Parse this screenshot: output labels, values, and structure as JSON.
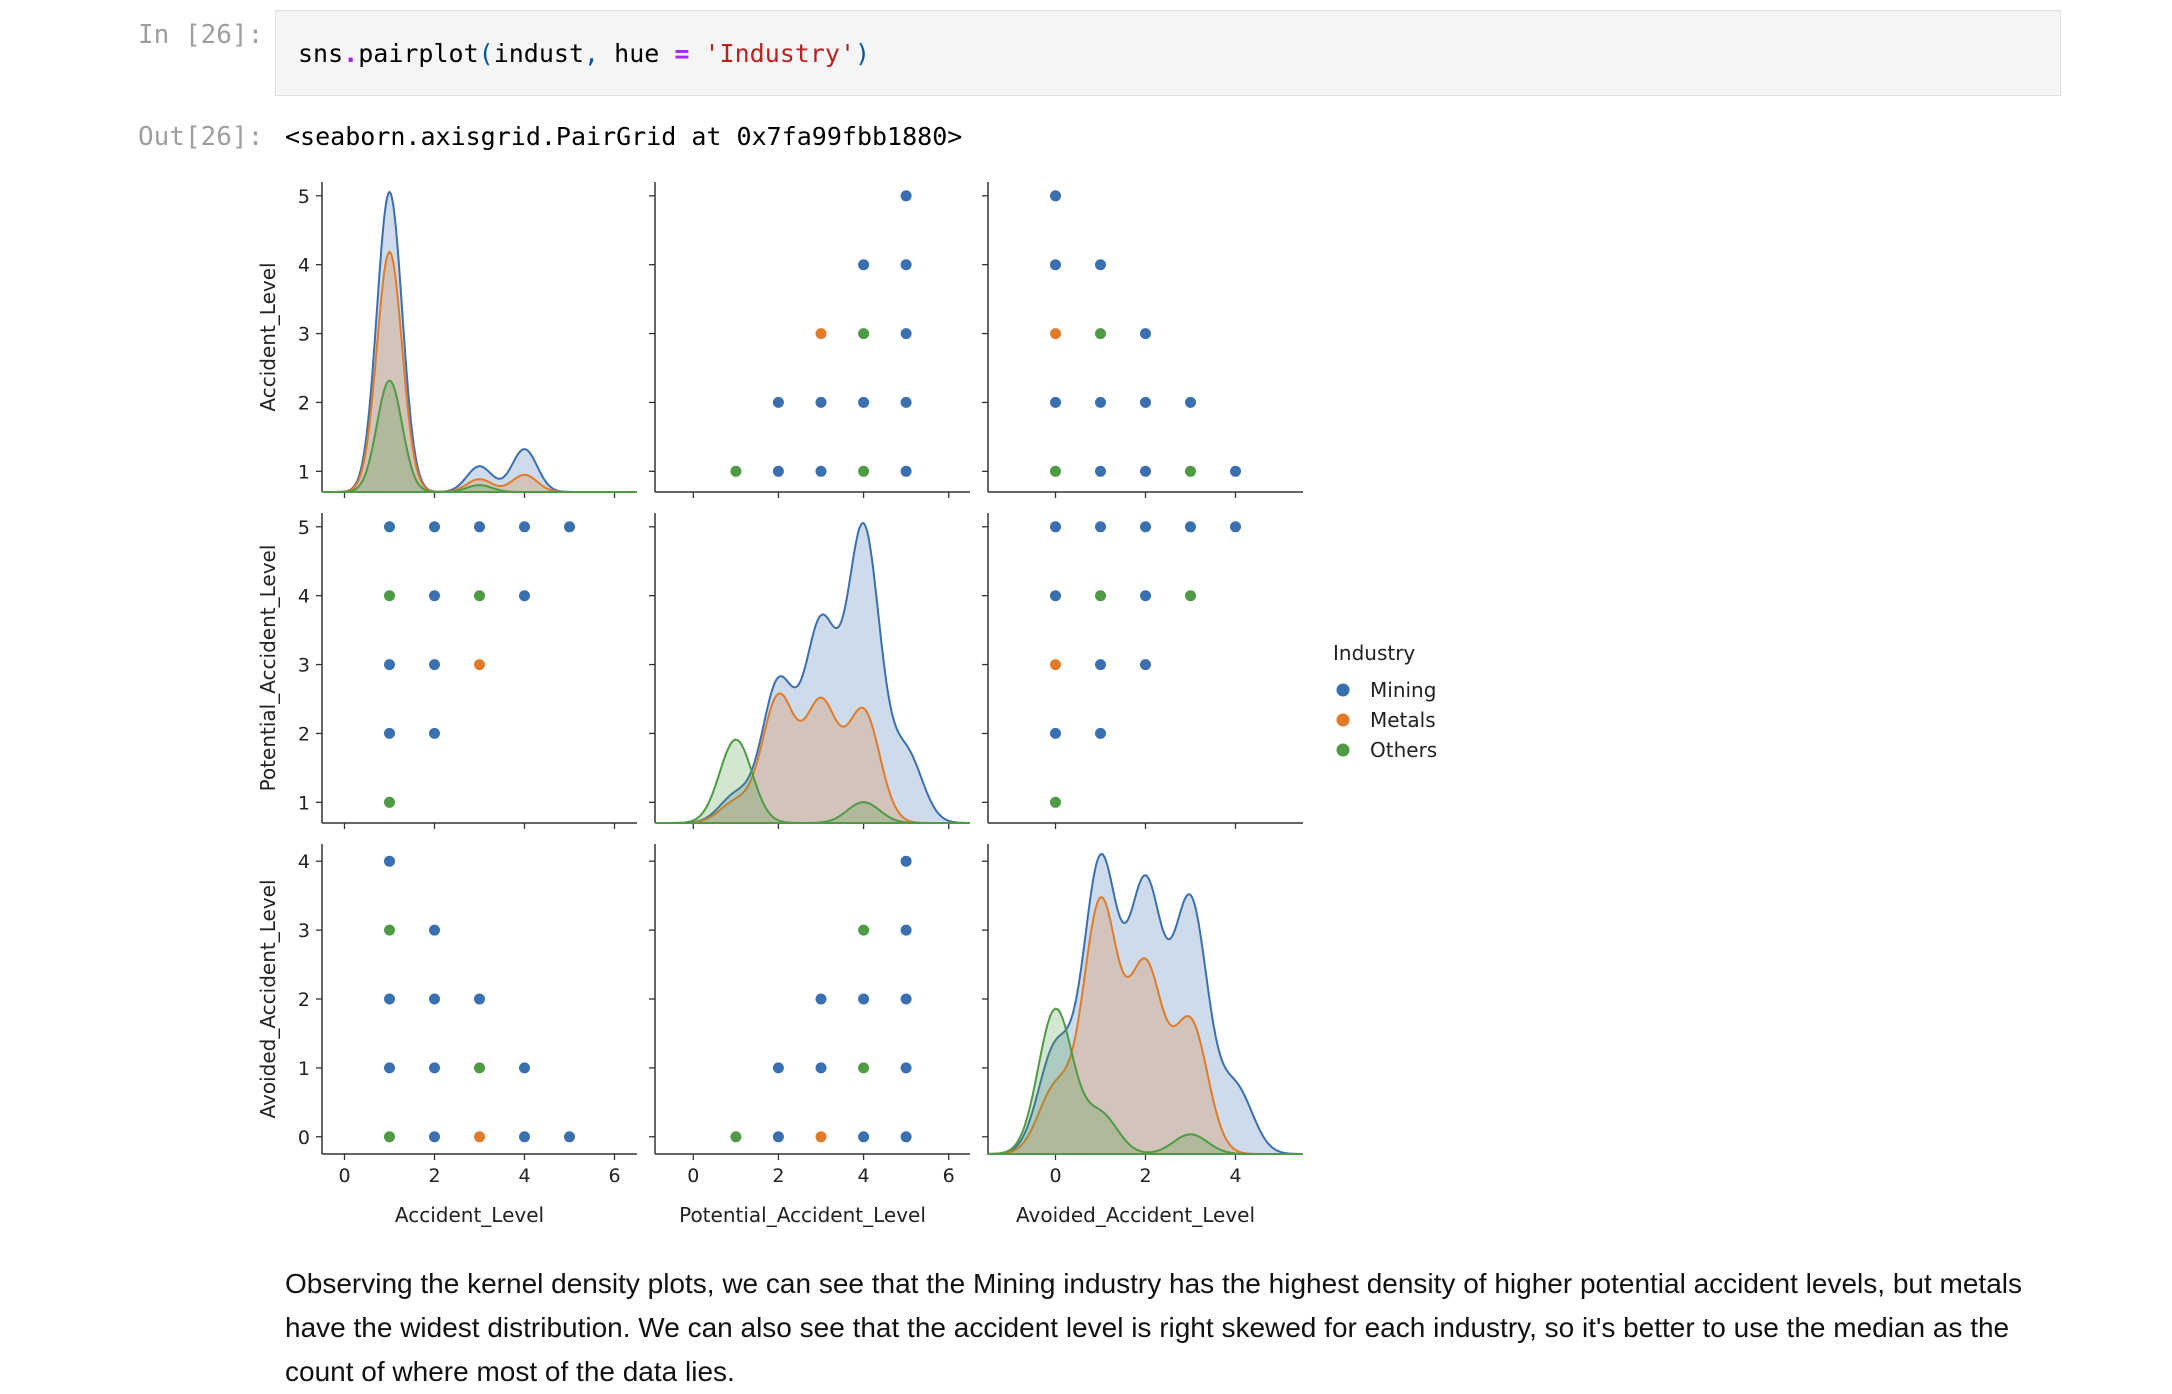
{
  "cell_in": {
    "prompt": "In [26]:",
    "code": {
      "fn": "sns",
      "dot": ".",
      "method": "pairplot",
      "open": "(",
      "arg1": "indust",
      "comma": ",",
      "kw": "hue",
      "eq": "=",
      "str": "'Industry'",
      "close": ")"
    }
  },
  "cell_out": {
    "prompt": "Out[26]:",
    "repr": "<seaborn.axisgrid.PairGrid at 0x7fa99fbb1880>"
  },
  "chart_data": {
    "type": "pairplot",
    "variables": [
      "Accident_Level",
      "Potential_Accident_Level",
      "Avoided_Accident_Level"
    ],
    "hue": "Industry",
    "legend": {
      "title": "Industry",
      "entries": [
        "Mining",
        "Metals",
        "Others"
      ],
      "placement": "right-center"
    },
    "colors": {
      "Mining": "#3a6fb0",
      "Metals": "#e07b2a",
      "Others": "#4e9a45"
    },
    "axes": {
      "Accident_Level": {
        "range": [
          -0.5,
          6.5
        ],
        "ticks": [
          0,
          2,
          4,
          6
        ],
        "row_ticks": [
          1,
          2,
          3,
          4,
          5
        ],
        "row_range": [
          0.7,
          5.2
        ]
      },
      "Potential_Accident_Level": {
        "range": [
          -0.9,
          6.5
        ],
        "ticks": [
          0,
          2,
          4,
          6
        ],
        "row_ticks": [
          1,
          2,
          3,
          4,
          5
        ],
        "row_range": [
          0.7,
          5.2
        ]
      },
      "Avoided_Accident_Level": {
        "range": [
          -1.5,
          5.5
        ],
        "ticks": [
          0,
          2,
          4
        ],
        "row_ticks": [
          0,
          1,
          2,
          3,
          4
        ],
        "row_range": [
          -0.25,
          4.25
        ]
      }
    },
    "scatter": {
      "Accident_Level|Potential_Accident_Level": {
        "Mining": [
          [
            1,
            5
          ],
          [
            2,
            5
          ],
          [
            3,
            5
          ],
          [
            4,
            5
          ],
          [
            5,
            5
          ],
          [
            2,
            4
          ],
          [
            4,
            4
          ],
          [
            1,
            3
          ],
          [
            2,
            3
          ],
          [
            1,
            2
          ],
          [
            2,
            2
          ]
        ],
        "Metals": [
          [
            3,
            3
          ]
        ],
        "Others": [
          [
            1,
            4
          ],
          [
            3,
            4
          ],
          [
            1,
            1
          ]
        ]
      },
      "Accident_Level|Avoided_Accident_Level": {
        "Mining": [
          [
            1,
            4
          ],
          [
            2,
            3
          ],
          [
            1,
            2
          ],
          [
            2,
            2
          ],
          [
            3,
            2
          ],
          [
            1,
            1
          ],
          [
            2,
            1
          ],
          [
            4,
            1
          ],
          [
            2,
            0
          ],
          [
            4,
            0
          ],
          [
            5,
            0
          ]
        ],
        "Metals": [
          [
            3,
            0
          ]
        ],
        "Others": [
          [
            1,
            3
          ],
          [
            3,
            1
          ],
          [
            1,
            0
          ]
        ]
      },
      "Potential_Accident_Level|Accident_Level": {
        "Mining": [
          [
            5,
            5
          ],
          [
            4,
            4
          ],
          [
            5,
            4
          ],
          [
            5,
            3
          ],
          [
            2,
            2
          ],
          [
            3,
            2
          ],
          [
            4,
            2
          ],
          [
            5,
            2
          ],
          [
            2,
            1
          ],
          [
            3,
            1
          ],
          [
            5,
            1
          ]
        ],
        "Metals": [
          [
            3,
            3
          ]
        ],
        "Others": [
          [
            4,
            3
          ],
          [
            1,
            1
          ],
          [
            4,
            1
          ]
        ]
      },
      "Potential_Accident_Level|Avoided_Accident_Level": {
        "Mining": [
          [
            5,
            4
          ],
          [
            5,
            3
          ],
          [
            3,
            2
          ],
          [
            4,
            2
          ],
          [
            5,
            2
          ],
          [
            2,
            1
          ],
          [
            3,
            1
          ],
          [
            5,
            1
          ],
          [
            2,
            0
          ],
          [
            4,
            0
          ],
          [
            5,
            0
          ]
        ],
        "Metals": [
          [
            3,
            0
          ]
        ],
        "Others": [
          [
            4,
            3
          ],
          [
            4,
            1
          ],
          [
            1,
            0
          ]
        ]
      },
      "Avoided_Accident_Level|Accident_Level": {
        "Mining": [
          [
            0,
            5
          ],
          [
            0,
            4
          ],
          [
            1,
            4
          ],
          [
            2,
            3
          ],
          [
            0,
            2
          ],
          [
            1,
            2
          ],
          [
            2,
            2
          ],
          [
            3,
            2
          ],
          [
            1,
            1
          ],
          [
            2,
            1
          ],
          [
            4,
            1
          ]
        ],
        "Metals": [
          [
            0,
            3
          ]
        ],
        "Others": [
          [
            1,
            3
          ],
          [
            0,
            1
          ],
          [
            3,
            1
          ]
        ]
      },
      "Avoided_Accident_Level|Potential_Accident_Level": {
        "Mining": [
          [
            0,
            5
          ],
          [
            1,
            5
          ],
          [
            2,
            5
          ],
          [
            3,
            5
          ],
          [
            4,
            5
          ],
          [
            0,
            4
          ],
          [
            2,
            4
          ],
          [
            1,
            3
          ],
          [
            2,
            3
          ],
          [
            0,
            2
          ],
          [
            1,
            2
          ]
        ],
        "Metals": [
          [
            0,
            3
          ]
        ],
        "Others": [
          [
            1,
            4
          ],
          [
            3,
            4
          ],
          [
            0,
            1
          ]
        ]
      }
    },
    "kde_note": "diagonal panels show kernel density per Industry (approximate peak heights, relative scale)",
    "kde": {
      "Accident_Level": {
        "Mining": [
          [
            1,
            0.35
          ],
          [
            3,
            0.03
          ],
          [
            4,
            0.05
          ]
        ],
        "Metals": [
          [
            1,
            0.28
          ],
          [
            3,
            0.015
          ],
          [
            4,
            0.02
          ]
        ],
        "Others": [
          [
            1,
            0.13
          ],
          [
            3,
            0.008
          ]
        ]
      },
      "Potential_Accident_Level": {
        "Mining": [
          [
            1,
            0.02
          ],
          [
            2,
            0.1
          ],
          [
            3,
            0.14
          ],
          [
            4,
            0.21
          ],
          [
            5,
            0.05
          ]
        ],
        "Metals": [
          [
            1,
            0.015
          ],
          [
            2,
            0.09
          ],
          [
            3,
            0.085
          ],
          [
            4,
            0.08
          ]
        ],
        "Others": [
          [
            1,
            0.06
          ],
          [
            4,
            0.015
          ]
        ]
      },
      "Avoided_Accident_Level": {
        "Mining": [
          [
            0,
            0.08
          ],
          [
            1,
            0.22
          ],
          [
            2,
            0.2
          ],
          [
            3,
            0.19
          ],
          [
            4,
            0.05
          ]
        ],
        "Metals": [
          [
            0,
            0.05
          ],
          [
            1,
            0.19
          ],
          [
            2,
            0.14
          ],
          [
            3,
            0.1
          ]
        ],
        "Others": [
          [
            0,
            0.11
          ],
          [
            1,
            0.03
          ],
          [
            3,
            0.015
          ]
        ]
      }
    }
  },
  "markdown": {
    "text": "Observing the kernel density plots, we can see that the Mining industry has the highest density of higher potential accident levels, but metals have the widest distribution. We can also see that the accident level is right skewed for each industry, so it's better to use the median as the count of where most of the data lies."
  }
}
